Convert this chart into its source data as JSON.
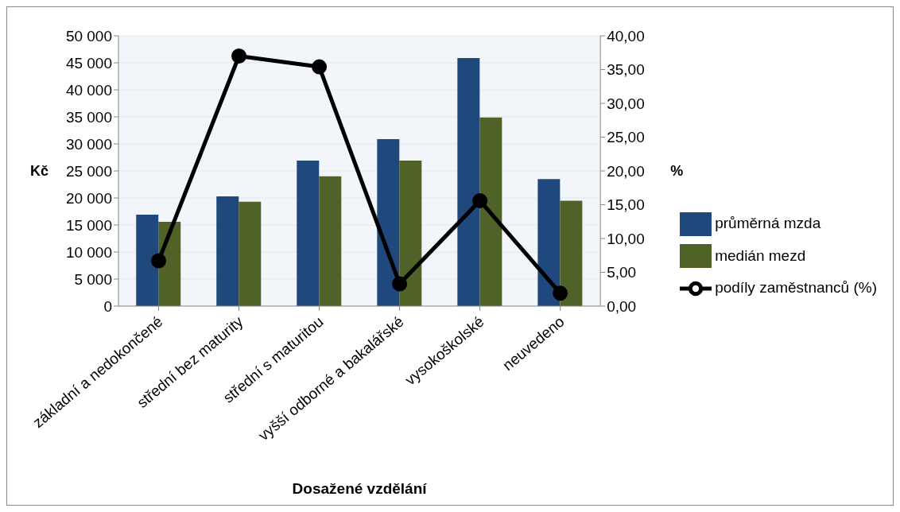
{
  "chart_data": {
    "type": "bar",
    "xlabel": "Dosažené vzdělání",
    "ylabel": "Kč",
    "y2label": "%",
    "categories": [
      "základní a nedokončené",
      "střední bez maturity",
      "střední s maturitou",
      "vyšší odborné a bakalářské",
      "vysokoškolské",
      "neuvedeno"
    ],
    "series": [
      {
        "name": "průměrná mzda",
        "color": "#1f497d",
        "values": [
          16900,
          20300,
          26900,
          30900,
          45900,
          23500
        ]
      },
      {
        "name": "medián mezd",
        "color": "#4f6228",
        "values": [
          15600,
          19300,
          24000,
          26900,
          34900,
          19500
        ]
      },
      {
        "name": "podíly zaměstnanců (%)",
        "type": "line",
        "axis": "y2",
        "color": "#000000",
        "values": [
          6.7,
          37.0,
          35.4,
          3.3,
          15.6,
          1.9
        ]
      }
    ],
    "ylim": [
      0,
      50000
    ],
    "yticks": [
      {
        "value": 0,
        "label": "0"
      },
      {
        "value": 5000,
        "label": "5 000"
      },
      {
        "value": 10000,
        "label": "10 000"
      },
      {
        "value": 15000,
        "label": "15 000"
      },
      {
        "value": 20000,
        "label": "20 000"
      },
      {
        "value": 25000,
        "label": "25 000"
      },
      {
        "value": 30000,
        "label": "30 000"
      },
      {
        "value": 35000,
        "label": "35 000"
      },
      {
        "value": 40000,
        "label": "40 000"
      },
      {
        "value": 45000,
        "label": "45 000"
      },
      {
        "value": 50000,
        "label": "50 000"
      }
    ],
    "y2lim": [
      0,
      40
    ],
    "y2ticks": [
      {
        "value": 0,
        "label": "0,00"
      },
      {
        "value": 5,
        "label": "5,00"
      },
      {
        "value": 10,
        "label": "10,00"
      },
      {
        "value": 15,
        "label": "15,00"
      },
      {
        "value": 20,
        "label": "20,00"
      },
      {
        "value": 25,
        "label": "25,00"
      },
      {
        "value": 30,
        "label": "30,00"
      },
      {
        "value": 35,
        "label": "35,00"
      },
      {
        "value": 40,
        "label": "40,00"
      }
    ],
    "grid": "y",
    "legend": "right",
    "marker": "circle",
    "line_style": "solid"
  }
}
